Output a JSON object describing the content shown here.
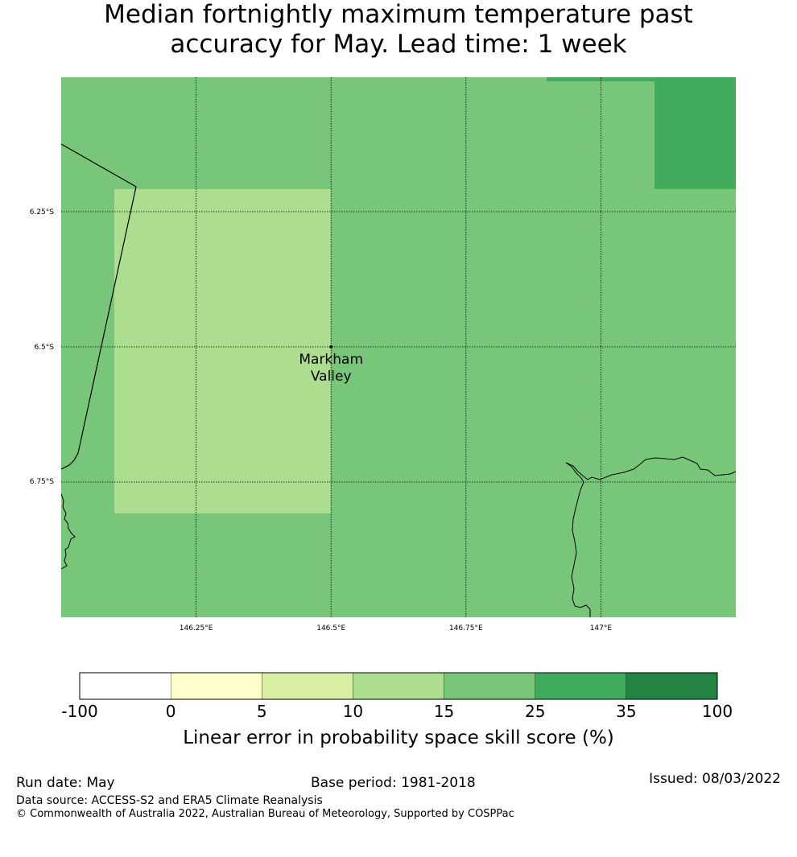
{
  "title": {
    "line1": "Median fortnightly maximum temperature past",
    "line2": "accuracy for May. Lead time: 1 week"
  },
  "map": {
    "lon_labels": [
      "146.25°E",
      "146.5°E",
      "146.75°E",
      "147°E"
    ],
    "lat_labels": [
      "6.25°S",
      "6.5°S",
      "6.75°S"
    ],
    "location": {
      "name_line1": "Markham",
      "name_line2": "Valley",
      "lon": 146.5,
      "lat": -6.5
    },
    "gridlines": true,
    "skill_regions": [
      {
        "description": "background",
        "category": "15-25",
        "color": "#78c679"
      },
      {
        "description": "west-central block",
        "category": "10-15",
        "color": "#addd8e"
      },
      {
        "description": "north-east corner",
        "category": "25-35",
        "color": "#41ab5d"
      }
    ]
  },
  "colorbar": {
    "ticks": [
      "-100",
      "0",
      "5",
      "10",
      "15",
      "25",
      "35",
      "100"
    ],
    "colors": [
      "#ffffff",
      "#ffffcc",
      "#d9f0a3",
      "#addd8e",
      "#78c679",
      "#41ab5d",
      "#238443"
    ],
    "label": "Linear error in probability space skill score (%)"
  },
  "footer": {
    "run_date": "Run date: May",
    "base_period": "Base period: 1981-2018",
    "issued": "Issued: 08/03/2022",
    "data_source": "Data source: ACCESS-S2 and ERA5 Climate Reanalysis",
    "copyright": "© Commonwealth of Australia 2022, Australian Bureau of Meteorology, Supported by COSPPac"
  }
}
